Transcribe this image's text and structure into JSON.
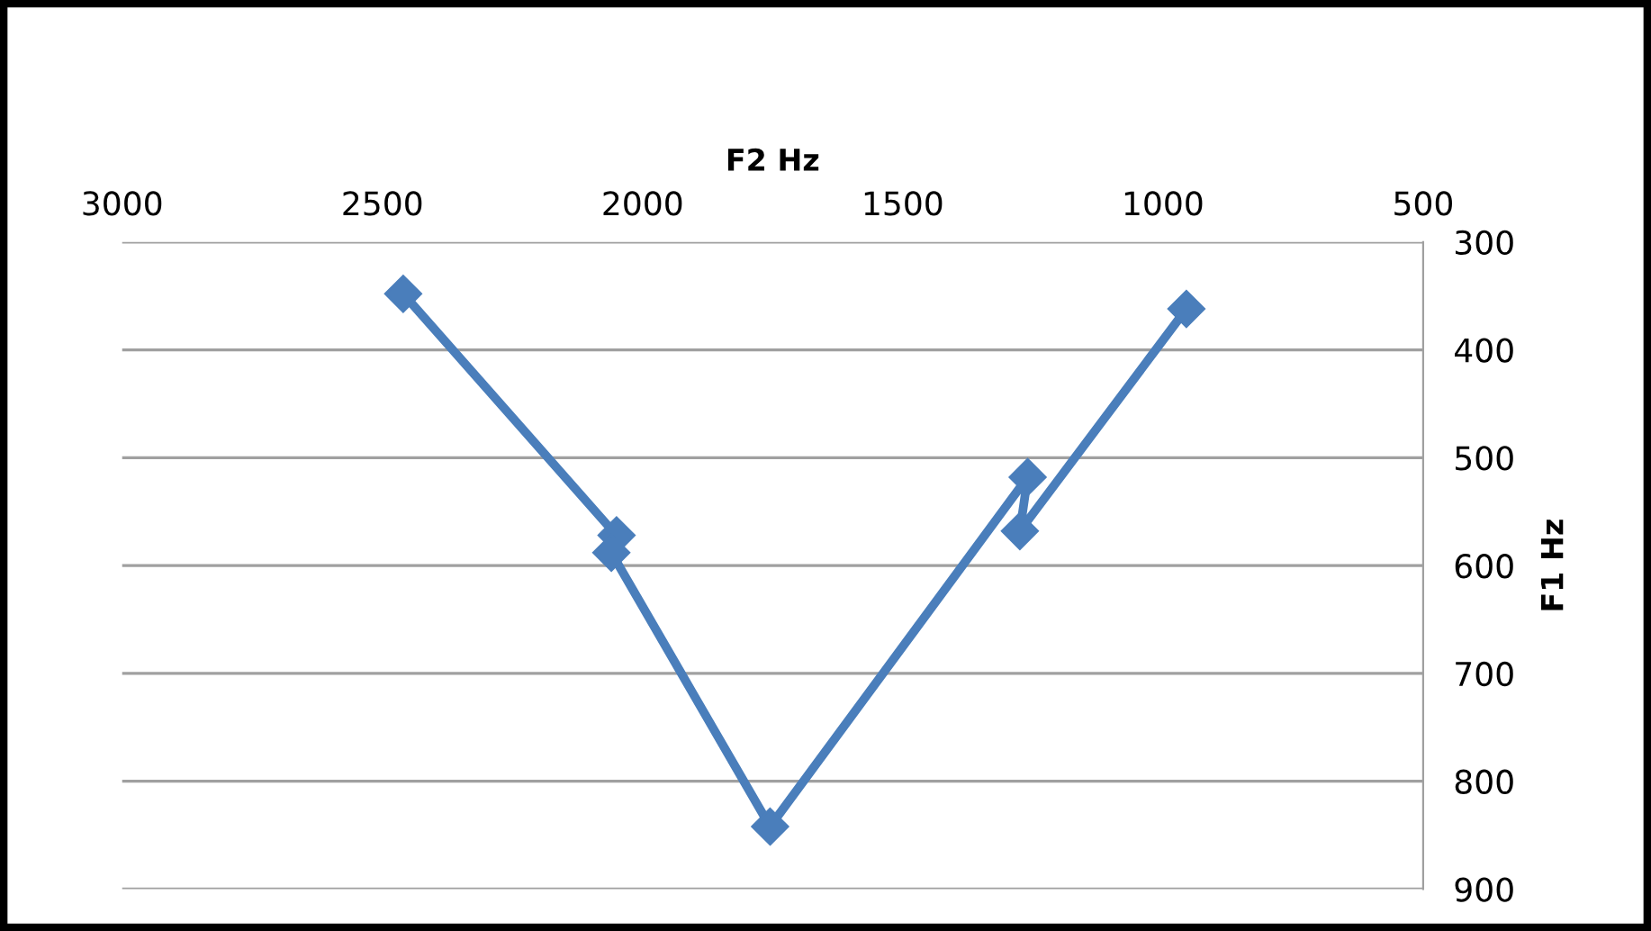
{
  "chart_data": {
    "type": "line",
    "xlabel": "F2 Hz",
    "ylabel": "F1 Hz",
    "x": [
      2460,
      2050,
      2060,
      1755,
      1260,
      1275,
      955
    ],
    "values": [
      348,
      572,
      588,
      842,
      518,
      568,
      362
    ],
    "color": "#4a7ebb",
    "marker": "diamond",
    "line_style": "solid",
    "xlim": [
      3000,
      500
    ],
    "xticks": [
      3000,
      2500,
      2000,
      1500,
      1000,
      500
    ],
    "ylim": [
      900,
      300
    ],
    "yticks": [
      300,
      400,
      500,
      600,
      700,
      800,
      900
    ],
    "grid": "y",
    "legend": false
  }
}
